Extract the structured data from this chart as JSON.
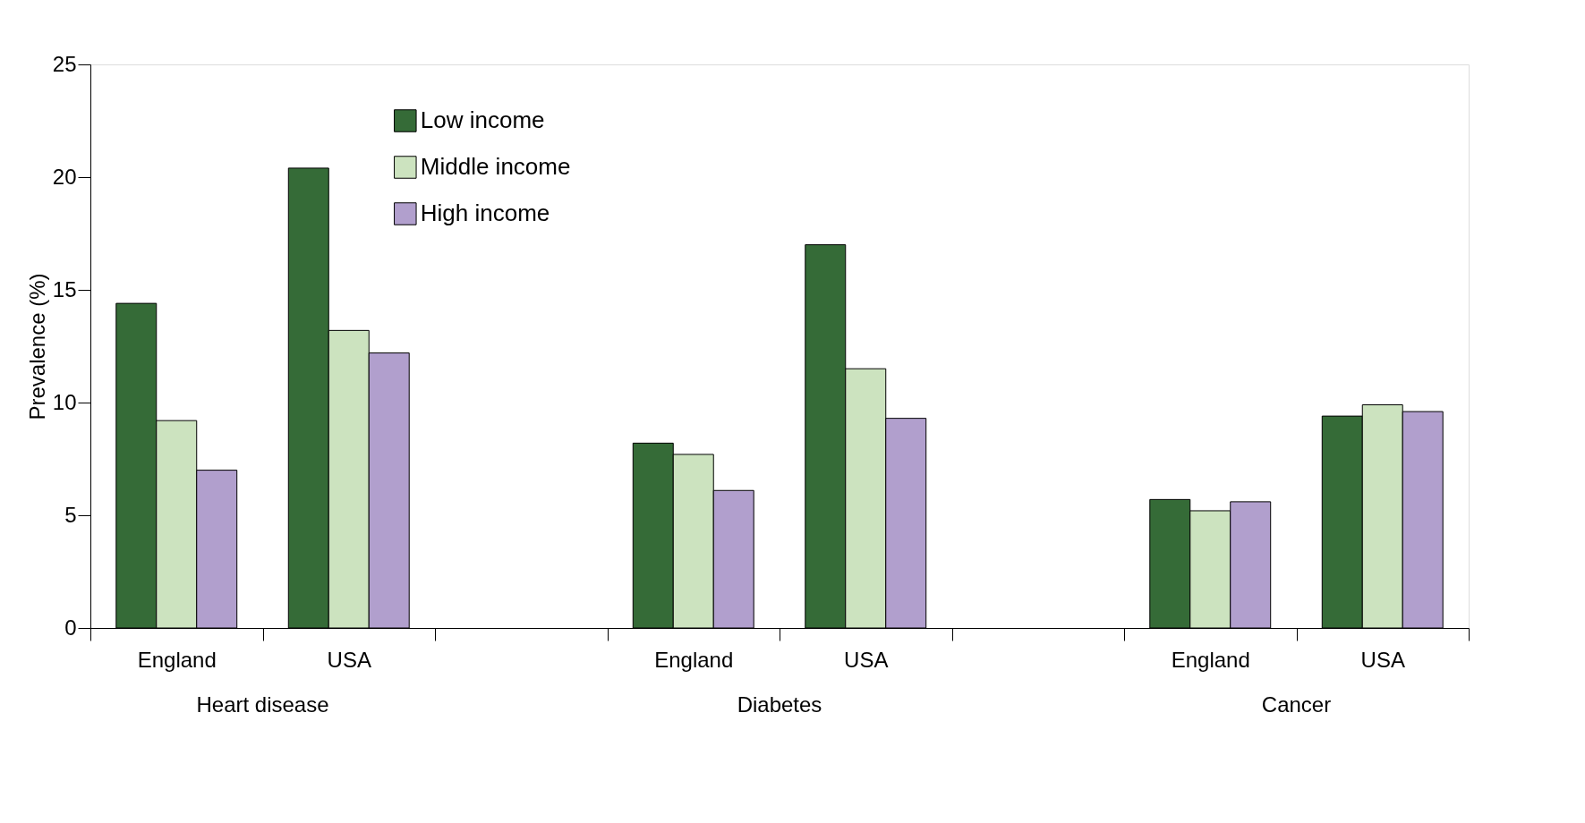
{
  "chart_data": {
    "type": "bar",
    "ylabel": "Prevalence (%)",
    "categories": [
      "England",
      "USA",
      null,
      "England",
      "USA",
      null,
      "England",
      "USA"
    ],
    "series": [
      {
        "name": "Low income",
        "color": "#356b37",
        "values": [
          14.4,
          20.4,
          null,
          8.2,
          17.0,
          null,
          5.7,
          9.4
        ]
      },
      {
        "name": "Middle income",
        "color": "#cce3bf",
        "values": [
          9.2,
          13.2,
          null,
          7.7,
          11.5,
          null,
          5.2,
          9.9
        ]
      },
      {
        "name": "High income",
        "color": "#b19fcd",
        "values": [
          7.0,
          12.2,
          null,
          6.1,
          9.3,
          null,
          5.6,
          9.6
        ]
      }
    ],
    "annotations": [
      "Heart disease",
      "Diabetes",
      "Cancer"
    ],
    "ylim": [
      0,
      25
    ],
    "yticks": [
      0,
      5,
      10,
      15,
      20,
      25
    ],
    "grid": false,
    "legend": "top left"
  }
}
